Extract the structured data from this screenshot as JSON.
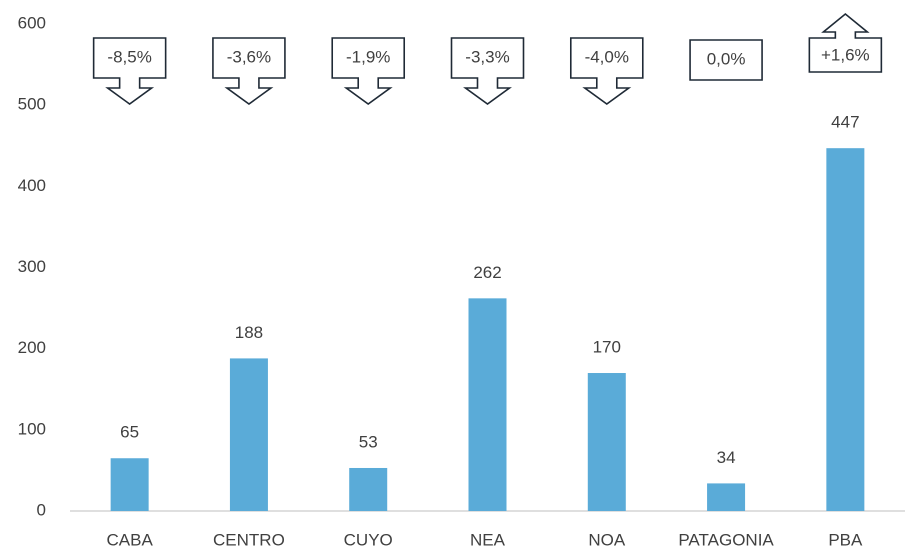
{
  "chart_data": {
    "type": "bar",
    "categories": [
      "CABA",
      "CENTRO",
      "CUYO",
      "NEA",
      "NOA",
      "PATAGONIA",
      "PBA"
    ],
    "values": [
      65,
      188,
      53,
      262,
      170,
      34,
      447
    ],
    "annotations": [
      "-8,5%",
      "-3,6%",
      "-1,9%",
      "-3,3%",
      "-4,0%",
      "0,0%",
      "+1,6%"
    ],
    "color": "#5aabd8",
    "ylim": [
      0,
      600
    ],
    "yticks": [
      0,
      100,
      200,
      300,
      400,
      500,
      600
    ],
    "grid": false
  }
}
